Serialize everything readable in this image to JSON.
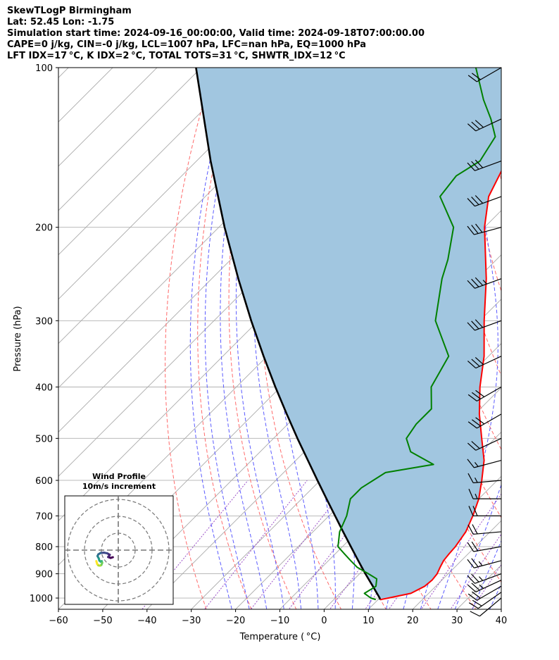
{
  "header": {
    "line1": "SkewTLogP Birmingham",
    "line2": "Lat: 52.45   Lon: -1.75",
    "line3": "Simulation start time: 2024-09-16_00:00:00, Valid time: 2024-09-18T07:00:00.00",
    "line4": "CAPE=0 j/kg, CIN=-0 j/kg, LCL=1007 hPa, LFC=nan hPa, EQ=1000 hPa",
    "line5": "LFT IDX=17 °C, K IDX=2 °C, TOTAL TOTS=31 °C, SHWTR_IDX=12 °C"
  },
  "colors": {
    "temperature": "#ff0000",
    "dewpoint": "#008000",
    "parcel": "#000000",
    "cape_fill": "#a1c6e0",
    "dry_adiabat": "#ff6a6a",
    "moist_adiabat": "#5b5bff",
    "mixing_ratio": "#9a4fc7",
    "isotherm": "#aaaaaa"
  },
  "chart_data": {
    "type": "skewt",
    "xlabel": "Temperature ( °C)",
    "ylabel": "Pressure (hPa)",
    "xlim": [
      -60,
      40
    ],
    "ylim": [
      1050,
      100
    ],
    "yscale": "log",
    "xticks": [
      -60,
      -50,
      -40,
      -30,
      -20,
      -10,
      0,
      10,
      20,
      30,
      40
    ],
    "xtick_labels": [
      "−60",
      "−50",
      "−40",
      "−30",
      "−20",
      "−10",
      "0",
      "10",
      "20",
      "30",
      "40"
    ],
    "yticks": [
      1000,
      900,
      800,
      700,
      600,
      500,
      400,
      300,
      200,
      100
    ],
    "ytick_labels": [
      "1000",
      "900",
      "800",
      "700",
      "600",
      "500",
      "400",
      "300",
      "200",
      "100"
    ],
    "grid": true,
    "series": [
      {
        "role": "temperature",
        "p": [
          1007,
          1000,
          980,
          950,
          925,
          900,
          875,
          850,
          825,
          800,
          750,
          700,
          650,
          600,
          550,
          500,
          450,
          400,
          350,
          300,
          250,
          200,
          175,
          150,
          125,
          100
        ],
        "t": [
          10.5,
          12,
          16,
          17.5,
          17.8,
          17.5,
          16.7,
          16,
          15.7,
          15.5,
          14.5,
          12.5,
          10,
          6.5,
          2.5,
          -3,
          -9,
          -15,
          -21,
          -29,
          -38,
          -50,
          -56,
          -60,
          -66,
          -73
        ]
      },
      {
        "role": "dewpoint",
        "p": [
          1007,
          1000,
          980,
          950,
          920,
          900,
          875,
          850,
          825,
          800,
          750,
          700,
          650,
          620,
          580,
          560,
          530,
          500,
          470,
          440,
          400,
          350,
          300,
          250,
          230,
          200,
          175,
          160,
          150,
          135,
          125,
          115,
          100
        ],
        "t": [
          9.5,
          8,
          5.5,
          6.5,
          5,
          2,
          -2,
          -5,
          -8,
          -11,
          -14,
          -16,
          -19,
          -19,
          -17,
          -8,
          -16,
          -20,
          -21,
          -21,
          -26,
          -29,
          -40,
          -48,
          -51,
          -57,
          -67,
          -68,
          -66,
          -68,
          -73,
          -79,
          -88
        ]
      },
      {
        "role": "parcel",
        "p": [
          1007,
          1000,
          950,
          900,
          850,
          800,
          750,
          700,
          650,
          600,
          550,
          500,
          450,
          400,
          350,
          300,
          250,
          200,
          150,
          100
        ],
        "t": [
          10.5,
          10.0,
          5.8,
          1.3,
          -3.3,
          -8.1,
          -13.2,
          -18.6,
          -24.4,
          -30.6,
          -37.3,
          -44.6,
          -52.5,
          -61.2,
          -70.8,
          -81.6,
          -94.0,
          -108.7,
          -126.8,
          -151.2
        ]
      }
    ],
    "hodograph": {
      "title": "Wind Profile",
      "subtitle": "10m/s increment",
      "u_ms": [
        -3.2,
        -4.5,
        -6.0,
        -5.0,
        -6.5,
        -8.5,
        -10.5,
        -11.8,
        -12.3,
        -11.5,
        -11.2,
        -10.5,
        -9.8,
        -9.5,
        -10.0,
        -10.8,
        -11.8,
        -12.5,
        -13.0
      ],
      "v_ms": [
        -4.2,
        -4.6,
        -4.1,
        -2.8,
        -1.9,
        -1.5,
        -1.7,
        -2.5,
        -3.5,
        -5.0,
        -6.2,
        -6.8,
        -6.5,
        -7.5,
        -8.8,
        -9.2,
        -9.0,
        -8.2,
        -6.5
      ]
    },
    "wind_barbs": {
      "p": [
        1000,
        975,
        950,
        925,
        900,
        850,
        800,
        750,
        700,
        650,
        600,
        550,
        500,
        450,
        400,
        350,
        300,
        250,
        200,
        175,
        150,
        125,
        100
      ],
      "speed_kt": [
        10,
        20,
        22,
        25,
        25,
        25,
        22,
        20,
        18,
        15,
        15,
        17,
        22,
        28,
        30,
        30,
        32,
        35,
        32,
        30,
        30,
        28,
        20
      ],
      "dir_deg": [
        230,
        235,
        240,
        245,
        250,
        255,
        260,
        265,
        270,
        270,
        265,
        255,
        245,
        240,
        240,
        245,
        250,
        250,
        255,
        250,
        250,
        245,
        240
      ]
    }
  }
}
